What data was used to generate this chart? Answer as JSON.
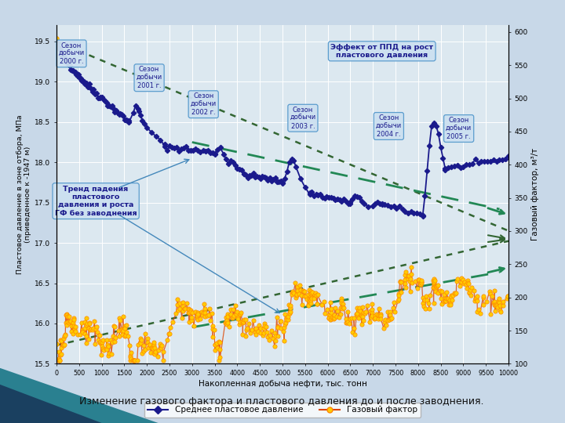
{
  "title": "",
  "xlabel": "Накопленная добыча нефти, тыс. тонн",
  "ylabel_left": "Пластовое давление в зоне отбора, МПа\n(приведенное к -1947 м)",
  "ylabel_right": "Газовый фактор, м³/т",
  "xlim": [
    0,
    10000
  ],
  "ylim_left": [
    15.5,
    19.7
  ],
  "ylim_right": [
    100,
    610
  ],
  "xticks": [
    0,
    500,
    1000,
    1500,
    2000,
    2500,
    3000,
    3500,
    4000,
    4500,
    5000,
    5500,
    6000,
    6500,
    7000,
    7500,
    8000,
    8500,
    9000,
    9500,
    10000
  ],
  "yticks_left": [
    15.5,
    16.0,
    16.5,
    17.0,
    17.5,
    18.0,
    18.5,
    19.0,
    19.5
  ],
  "yticks_right": [
    100,
    150,
    200,
    250,
    300,
    350,
    400,
    450,
    500,
    550,
    600
  ],
  "outer_bg": "#c8d8e8",
  "plot_bg_color": "#dce8f0",
  "grid_color": "#ffffff",
  "pressure_color": "#1a1a8c",
  "gf_line_color": "#cc3300",
  "gf_marker_color": "#ffcc00",
  "gf_marker_edge": "#ff8800",
  "trend_dotted_color": "#336633",
  "trend_dashed_color": "#228855",
  "box_face": "#cce0f0",
  "box_edge": "#5599cc",
  "box_text": "#1a1a8c",
  "legend_entries": [
    "Среднее пластовое давление",
    "Газовый фактор"
  ],
  "caption": "Изменение газового фактора и пластового давления до и после заводнения."
}
